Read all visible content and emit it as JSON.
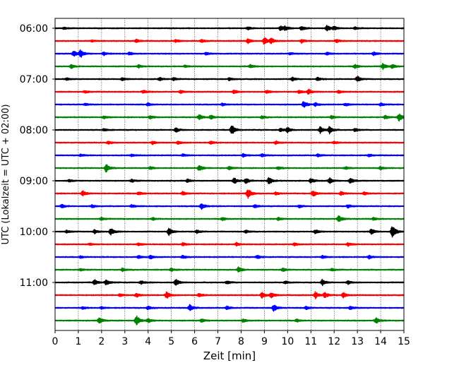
{
  "chart_data": {
    "type": "line",
    "title": "",
    "xlabel": "Zeit  [min]",
    "ylabel": "UTC (Lokalzeit = UTC + 02:00)",
    "xlim": [
      0,
      15
    ],
    "x_ticks": [
      "0",
      "1",
      "2",
      "3",
      "4",
      "5",
      "6",
      "7",
      "8",
      "9",
      "10",
      "11",
      "12",
      "13",
      "14",
      "15"
    ],
    "y_tick_labels": [
      "06:00",
      "07:00",
      "08:00",
      "09:00",
      "10:00",
      "11:00"
    ],
    "grid": "vertical dotted",
    "colors": {
      "black": "#000000",
      "red": "#ff0000",
      "blue": "#0000ff",
      "green": "#008000"
    },
    "trace_start": "05:57:30",
    "trace_minutes": 15,
    "traces": [
      {
        "start": "05:57:30",
        "color": "black",
        "events": [
          [
            0.4,
            0.2
          ],
          [
            8.3,
            0.25
          ],
          [
            9.7,
            0.45
          ],
          [
            9.9,
            0.35
          ],
          [
            10.6,
            0.4
          ],
          [
            11.7,
            0.55
          ],
          [
            12.0,
            0.3
          ],
          [
            12.9,
            0.25
          ]
        ]
      },
      {
        "start": "06:12:30",
        "color": "red",
        "events": [
          [
            1.6,
            0.2
          ],
          [
            3.5,
            0.3
          ],
          [
            5.2,
            0.25
          ],
          [
            6.3,
            0.25
          ],
          [
            8.3,
            0.4
          ],
          [
            9.0,
            0.65
          ],
          [
            9.3,
            0.5
          ],
          [
            10.6,
            0.35
          ],
          [
            12.1,
            0.3
          ]
        ]
      },
      {
        "start": "06:27:30",
        "color": "blue",
        "events": [
          [
            0.8,
            0.55
          ],
          [
            1.1,
            0.7
          ],
          [
            2.1,
            0.3
          ],
          [
            3.2,
            0.25
          ],
          [
            6.5,
            0.25
          ],
          [
            10.1,
            0.2
          ],
          [
            11.7,
            0.25
          ],
          [
            13.7,
            0.3
          ]
        ]
      },
      {
        "start": "06:42:30",
        "color": "green",
        "events": [
          [
            0.7,
            0.35
          ],
          [
            3.6,
            0.25
          ],
          [
            5.6,
            0.2
          ],
          [
            8.4,
            0.3
          ],
          [
            12.9,
            0.35
          ],
          [
            14.1,
            0.55
          ],
          [
            14.5,
            0.4
          ]
        ]
      },
      {
        "start": "06:57:30",
        "color": "black",
        "events": [
          [
            0.5,
            0.2
          ],
          [
            2.9,
            0.25
          ],
          [
            4.5,
            0.3
          ],
          [
            5.1,
            0.3
          ],
          [
            7.5,
            0.25
          ],
          [
            10.2,
            0.35
          ],
          [
            11.3,
            0.3
          ],
          [
            13.0,
            0.5
          ]
        ]
      },
      {
        "start": "07:12:30",
        "color": "red",
        "events": [
          [
            1.3,
            0.25
          ],
          [
            3.8,
            0.3
          ],
          [
            5.4,
            0.25
          ],
          [
            7.7,
            0.35
          ],
          [
            9.1,
            0.3
          ],
          [
            10.5,
            0.3
          ],
          [
            10.9,
            0.45
          ],
          [
            12.2,
            0.25
          ]
        ]
      },
      {
        "start": "07:27:30",
        "color": "blue",
        "events": [
          [
            1.3,
            0.2
          ],
          [
            4.0,
            0.25
          ],
          [
            7.2,
            0.25
          ],
          [
            10.7,
            0.65
          ],
          [
            11.2,
            0.3
          ],
          [
            12.5,
            0.25
          ],
          [
            14.0,
            0.25
          ]
        ]
      },
      {
        "start": "07:42:30",
        "color": "green",
        "events": [
          [
            2.1,
            0.25
          ],
          [
            4.1,
            0.3
          ],
          [
            6.2,
            0.5
          ],
          [
            6.7,
            0.35
          ],
          [
            8.9,
            0.25
          ],
          [
            11.9,
            0.3
          ],
          [
            14.2,
            0.35
          ],
          [
            14.8,
            0.7
          ]
        ]
      },
      {
        "start": "07:57:30",
        "color": "black",
        "events": [
          [
            2.1,
            0.25
          ],
          [
            5.2,
            0.4
          ],
          [
            7.6,
            0.95
          ],
          [
            9.7,
            0.3
          ],
          [
            10.0,
            0.45
          ],
          [
            11.4,
            0.6
          ],
          [
            11.8,
            0.65
          ],
          [
            12.9,
            0.3
          ]
        ]
      },
      {
        "start": "08:12:30",
        "color": "red",
        "events": [
          [
            2.3,
            0.3
          ],
          [
            4.2,
            0.3
          ],
          [
            5.3,
            0.25
          ],
          [
            6.7,
            0.35
          ],
          [
            9.5,
            0.3
          ],
          [
            12.0,
            0.25
          ]
        ]
      },
      {
        "start": "08:27:30",
        "color": "blue",
        "events": [
          [
            1.1,
            0.2
          ],
          [
            3.3,
            0.2
          ],
          [
            5.5,
            0.2
          ],
          [
            8.1,
            0.3
          ],
          [
            8.9,
            0.3
          ],
          [
            11.3,
            0.25
          ],
          [
            13.5,
            0.25
          ]
        ]
      },
      {
        "start": "08:42:30",
        "color": "green",
        "events": [
          [
            2.2,
            0.75
          ],
          [
            4.1,
            0.25
          ],
          [
            6.2,
            0.55
          ],
          [
            7.5,
            0.3
          ],
          [
            9.6,
            0.25
          ],
          [
            12.5,
            0.25
          ],
          [
            14.0,
            0.3
          ]
        ]
      },
      {
        "start": "08:57:30",
        "color": "black",
        "events": [
          [
            0.6,
            0.2
          ],
          [
            3.3,
            0.25
          ],
          [
            5.7,
            0.3
          ],
          [
            7.7,
            0.6
          ],
          [
            8.2,
            0.5
          ],
          [
            9.2,
            0.65
          ],
          [
            11.0,
            0.45
          ],
          [
            11.8,
            0.55
          ],
          [
            12.7,
            0.5
          ]
        ]
      },
      {
        "start": "09:12:30",
        "color": "red",
        "events": [
          [
            1.2,
            0.5
          ],
          [
            3.6,
            0.3
          ],
          [
            5.5,
            0.35
          ],
          [
            8.3,
            0.85
          ],
          [
            9.5,
            0.3
          ],
          [
            11.1,
            0.6
          ],
          [
            12.3,
            0.35
          ],
          [
            13.3,
            0.3
          ]
        ]
      },
      {
        "start": "09:27:30",
        "color": "blue",
        "events": [
          [
            0.3,
            0.3
          ],
          [
            1.6,
            0.25
          ],
          [
            3.3,
            0.25
          ],
          [
            6.3,
            0.55
          ],
          [
            8.6,
            0.3
          ],
          [
            10.5,
            0.25
          ],
          [
            12.6,
            0.3
          ]
        ]
      },
      {
        "start": "09:42:30",
        "color": "green",
        "events": [
          [
            2.0,
            0.25
          ],
          [
            4.2,
            0.25
          ],
          [
            7.2,
            0.3
          ],
          [
            9.6,
            0.25
          ],
          [
            12.2,
            0.6
          ],
          [
            13.7,
            0.25
          ]
        ]
      },
      {
        "start": "09:57:30",
        "color": "black",
        "events": [
          [
            0.5,
            0.25
          ],
          [
            1.7,
            0.35
          ],
          [
            2.4,
            0.65
          ],
          [
            4.9,
            0.7
          ],
          [
            6.1,
            0.3
          ],
          [
            8.2,
            0.25
          ],
          [
            11.2,
            0.35
          ],
          [
            13.6,
            0.55
          ],
          [
            14.5,
            1.25
          ]
        ]
      },
      {
        "start": "10:12:30",
        "color": "red",
        "events": [
          [
            1.5,
            0.2
          ],
          [
            3.6,
            0.25
          ],
          [
            5.5,
            0.25
          ],
          [
            7.8,
            0.3
          ],
          [
            10.3,
            0.25
          ],
          [
            12.6,
            0.3
          ]
        ]
      },
      {
        "start": "10:27:30",
        "color": "blue",
        "events": [
          [
            1.1,
            0.2
          ],
          [
            3.6,
            0.3
          ],
          [
            4.1,
            0.3
          ],
          [
            5.5,
            0.3
          ],
          [
            8.7,
            0.3
          ],
          [
            11.5,
            0.25
          ],
          [
            13.5,
            0.3
          ]
        ]
      },
      {
        "start": "10:42:30",
        "color": "green",
        "events": [
          [
            1.1,
            0.2
          ],
          [
            2.9,
            0.3
          ],
          [
            5.0,
            0.25
          ],
          [
            7.9,
            0.5
          ],
          [
            9.8,
            0.3
          ],
          [
            11.9,
            0.25
          ]
        ]
      },
      {
        "start": "10:57:30",
        "color": "black",
        "events": [
          [
            1.7,
            0.5
          ],
          [
            2.2,
            0.55
          ],
          [
            3.7,
            0.3
          ],
          [
            5.2,
            0.65
          ],
          [
            7.4,
            0.3
          ],
          [
            9.9,
            0.25
          ],
          [
            11.5,
            0.55
          ],
          [
            12.6,
            0.3
          ]
        ]
      },
      {
        "start": "11:12:30",
        "color": "red",
        "events": [
          [
            2.8,
            0.3
          ],
          [
            3.5,
            0.4
          ],
          [
            4.8,
            0.65
          ],
          [
            6.2,
            0.35
          ],
          [
            8.9,
            0.55
          ],
          [
            9.3,
            0.45
          ],
          [
            11.2,
            0.6
          ],
          [
            11.6,
            0.55
          ],
          [
            12.4,
            0.45
          ]
        ]
      },
      {
        "start": "11:27:30",
        "color": "blue",
        "events": [
          [
            1.2,
            0.25
          ],
          [
            2.0,
            0.2
          ],
          [
            4.0,
            0.3
          ],
          [
            5.8,
            0.55
          ],
          [
            7.4,
            0.3
          ],
          [
            9.4,
            0.65
          ],
          [
            10.8,
            0.3
          ],
          [
            12.7,
            0.3
          ]
        ]
      },
      {
        "start": "11:42:30",
        "color": "green",
        "events": [
          [
            1.9,
            0.55
          ],
          [
            3.5,
            0.9
          ],
          [
            4.0,
            0.35
          ],
          [
            6.3,
            0.3
          ],
          [
            8.1,
            0.3
          ],
          [
            10.4,
            0.25
          ],
          [
            13.8,
            0.55
          ]
        ]
      }
    ]
  }
}
